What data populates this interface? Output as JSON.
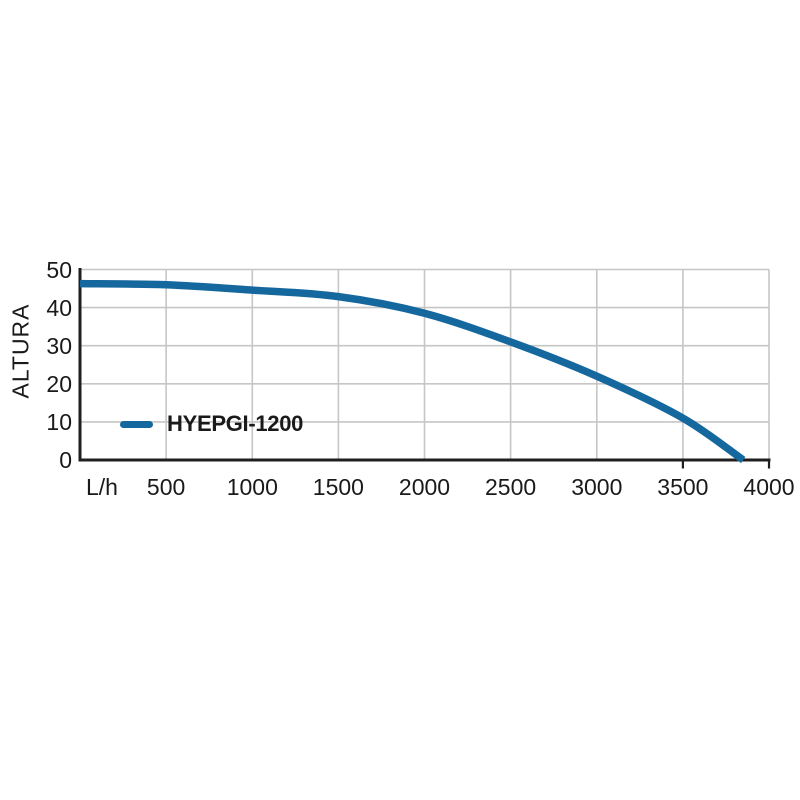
{
  "page": {
    "background": "#ffffff"
  },
  "chart_data": {
    "type": "line",
    "title": "",
    "ylabel": "ALTURA",
    "x_unit_label": "L/h",
    "xlim": [
      0,
      4000
    ],
    "ylim": [
      0,
      50
    ],
    "x_ticks": [
      500,
      1000,
      1500,
      2000,
      2500,
      3000,
      3500,
      4000
    ],
    "y_ticks": [
      0,
      10,
      20,
      30,
      40,
      50
    ],
    "grid": true,
    "axis_tick_marks_x": [
      3500,
      4000
    ],
    "legend": {
      "position": "inside-bottom-left",
      "label": "HYEPGI-1200"
    },
    "series": [
      {
        "name": "HYEPGI-1200",
        "color": "#15689E",
        "points": [
          [
            0,
            46.3
          ],
          [
            500,
            46.0
          ],
          [
            1000,
            44.6
          ],
          [
            1500,
            42.9
          ],
          [
            2000,
            38.5
          ],
          [
            2500,
            31.0
          ],
          [
            3000,
            22.0
          ],
          [
            3500,
            11.0
          ],
          [
            3850,
            0
          ]
        ]
      }
    ],
    "colors": {
      "curve": "#15689E",
      "grid": "#c6c6c6",
      "axis": "#1f1f1f",
      "text": "#1a1a1a",
      "background": "#ffffff"
    }
  }
}
